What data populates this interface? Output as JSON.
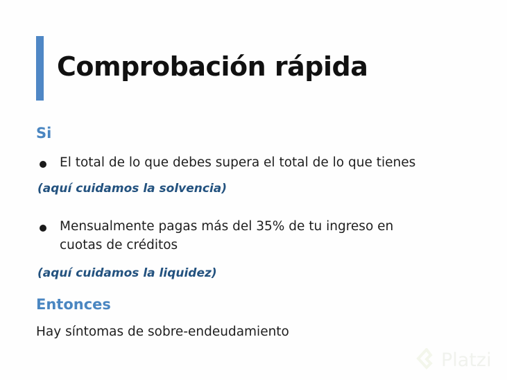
{
  "slide": {
    "title": "Comprobación rápida",
    "heading_if": "Si",
    "bullets": [
      {
        "lines": [
          "El total de lo que debes supera el total de lo que tienes"
        ],
        "note": "(aquí cuidamos la solvencia)"
      },
      {
        "lines": [
          "Mensualmente pagas más del 35% de tu ingreso en",
          "cuotas de créditos"
        ],
        "note": "(aquí cuidamos la liquidez)"
      }
    ],
    "heading_then": "Entonces",
    "conclusion": "Hay síntomas de sobre-endeudamiento"
  },
  "watermark": {
    "text": "Platzi",
    "icon": "platzi-logo-icon"
  },
  "colors": {
    "accent": "#4f87c5",
    "note": "#23527f"
  }
}
